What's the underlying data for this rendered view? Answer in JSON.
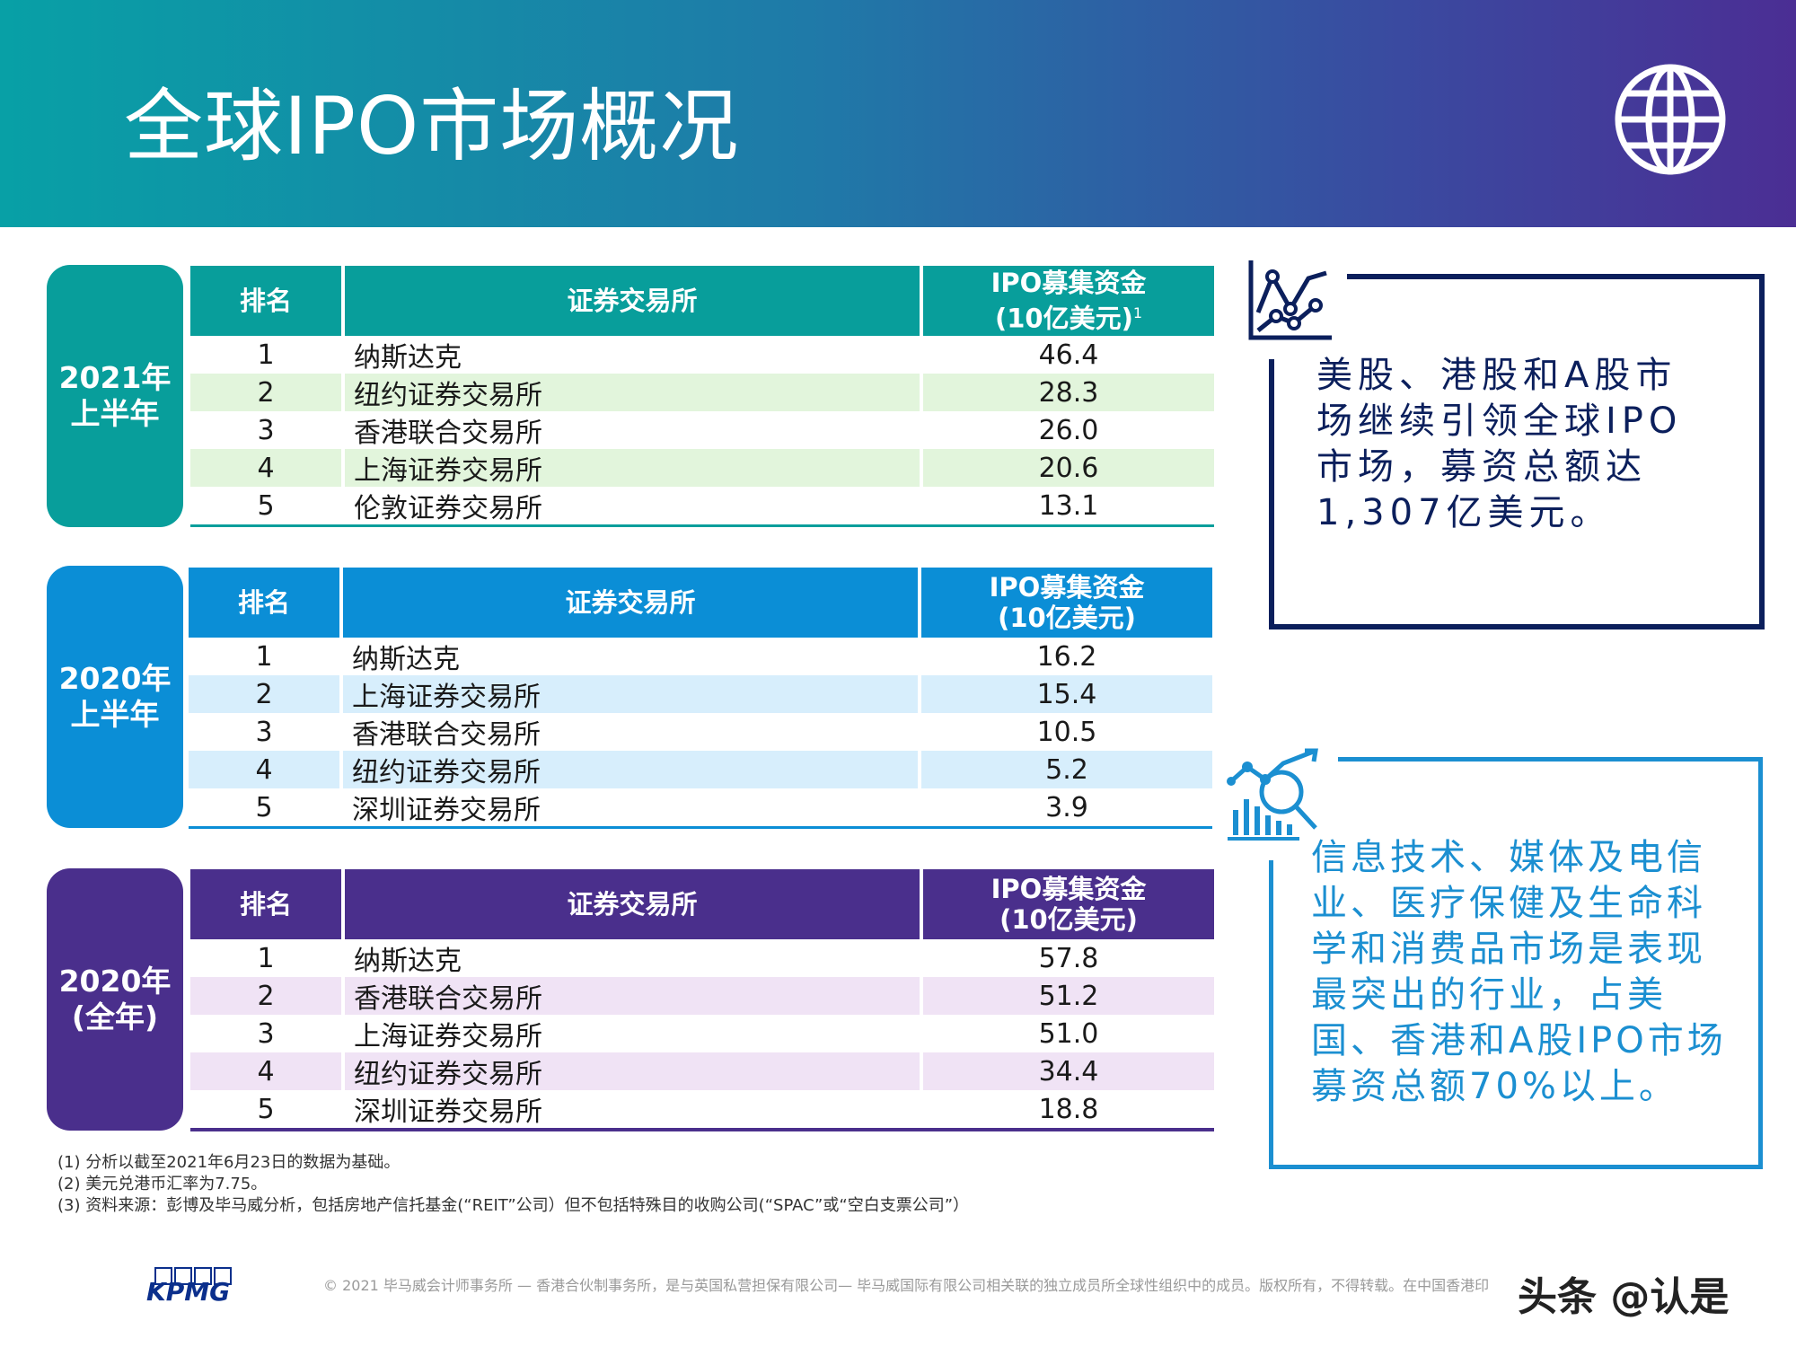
{
  "header": {
    "title": "全球IPO市场概况"
  },
  "colors": {
    "teal": "#089e9b",
    "blue": "#0b8ed6",
    "purple": "#4a2f8c",
    "navy": "#0b1f5c",
    "cyan_text": "#1b8fd1"
  },
  "tables": [
    {
      "period": [
        "2021年",
        "上半年"
      ],
      "headers": {
        "rank": "排名",
        "exchange": "证券交易所",
        "amount_line1": "IPO募集资金",
        "amount_line2": "(10亿美元)",
        "amount_sup": "1"
      },
      "rows": [
        {
          "rank": "1",
          "exchange": "纳斯达克",
          "amount": "46.4"
        },
        {
          "rank": "2",
          "exchange": "纽约证券交易所",
          "amount": "28.3"
        },
        {
          "rank": "3",
          "exchange": "香港联合交易所",
          "amount": "26.0"
        },
        {
          "rank": "4",
          "exchange": "上海证券交易所",
          "amount": "20.6"
        },
        {
          "rank": "5",
          "exchange": "伦敦证券交易所",
          "amount": "13.1"
        }
      ]
    },
    {
      "period": [
        "2020年",
        "上半年"
      ],
      "headers": {
        "rank": "排名",
        "exchange": "证券交易所",
        "amount_line1": "IPO募集资金",
        "amount_line2": "(10亿美元)"
      },
      "rows": [
        {
          "rank": "1",
          "exchange": "纳斯达克",
          "amount": "16.2"
        },
        {
          "rank": "2",
          "exchange": "上海证券交易所",
          "amount": "15.4"
        },
        {
          "rank": "3",
          "exchange": "香港联合交易所",
          "amount": "10.5"
        },
        {
          "rank": "4",
          "exchange": "纽约证券交易所",
          "amount": "5.2"
        },
        {
          "rank": "5",
          "exchange": "深圳证券交易所",
          "amount": "3.9"
        }
      ]
    },
    {
      "period": [
        "2020年",
        "(全年)"
      ],
      "headers": {
        "rank": "排名",
        "exchange": "证券交易所",
        "amount_line1": "IPO募集资金",
        "amount_line2": "(10亿美元)"
      },
      "rows": [
        {
          "rank": "1",
          "exchange": "纳斯达克",
          "amount": "57.8"
        },
        {
          "rank": "2",
          "exchange": "香港联合交易所",
          "amount": "51.2"
        },
        {
          "rank": "3",
          "exchange": "上海证券交易所",
          "amount": "51.0"
        },
        {
          "rank": "4",
          "exchange": "纽约证券交易所",
          "amount": "34.4"
        },
        {
          "rank": "5",
          "exchange": "深圳证券交易所",
          "amount": "18.8"
        }
      ]
    }
  ],
  "callouts": {
    "first": [
      "美股、港股和A股市",
      "场继续引领全球IPO",
      "市场，募资总额达",
      "1,307亿美元。"
    ],
    "second": [
      "信息技术、媒体及电信",
      "业、医疗保健及生命科",
      "学和消费品市场是表现",
      "最突出的行业，占美",
      "国、香港和A股IPO市场",
      "募资总额70%以上。"
    ]
  },
  "footnotes": [
    "(1) 分析以截至2021年6月23日的数据为基础。",
    "(2) 美元兑港币汇率为7.75。",
    "(3) 资料来源：彭博及毕马威分析，包括房地产信托基金(“REIT”公司）但不包括特殊目的收购公司(“SPAC”或“空白支票公司”）"
  ],
  "footer": {
    "copyright": "© 2021 毕马威会计师事务所 — 香港合伙制事务所，是与英国私营担保有限公司— 毕马威国际有限公司相关联的独立成员所全球性组织中的成员。版权所有，不得转载。在中国香港印",
    "logo": "KPMG",
    "watermark": "头条 @认是"
  }
}
